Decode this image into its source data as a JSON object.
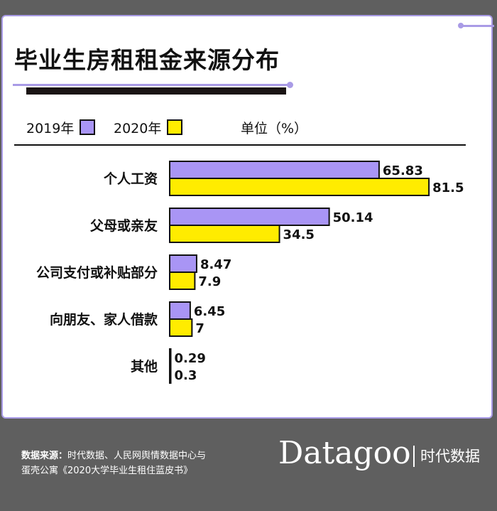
{
  "title": "毕业生房租租金来源分布",
  "legend": {
    "label_2019": "2019年",
    "label_2020": "2020年",
    "unit": "单位（%）"
  },
  "colors": {
    "series_2019": "#a995f5",
    "series_2020": "#ffec00",
    "border": "#a99be6"
  },
  "chart_data": {
    "type": "bar",
    "orientation": "horizontal",
    "categories": [
      "个人工资",
      "父母或亲友",
      "公司支付或补贴部分",
      "向朋友、家人借款",
      "其他"
    ],
    "series": [
      {
        "name": "2019年",
        "values": [
          65.83,
          50.14,
          8.47,
          6.45,
          0.29
        ],
        "value_labels": [
          "65.83",
          "50.14",
          "8.47",
          "6.45",
          "0.29"
        ]
      },
      {
        "name": "2020年",
        "values": [
          81.5,
          34.5,
          7.9,
          7,
          0.3
        ],
        "value_labels": [
          "81.5",
          "34.5",
          "7.9",
          "7",
          "0.3"
        ]
      }
    ],
    "grid": false,
    "legend_position": "top-left"
  },
  "footer": {
    "source_label": "数据来源：",
    "source_line1": "时代数据、人民网舆情数据中心与",
    "source_line2": "蛋壳公寓《2020大学毕业生租住蓝皮书》",
    "brand": "Datagoo",
    "brand_cn": "时代数据"
  }
}
